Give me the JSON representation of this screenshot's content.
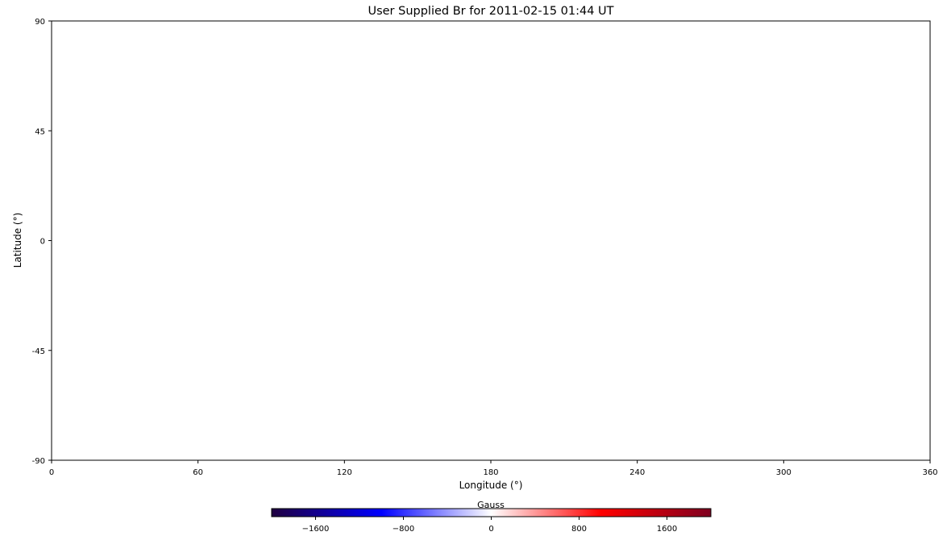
{
  "chart_data": {
    "type": "heatmap",
    "title": "User Supplied Br for 2011-02-15 01:44 UT",
    "xlabel": "Longitude (°)",
    "ylabel": "Latitude (°)",
    "xlim": [
      0,
      360
    ],
    "ylim": [
      -90,
      90
    ],
    "xticks": [
      0,
      60,
      120,
      180,
      240,
      300,
      360
    ],
    "yticks": [
      90,
      45,
      0,
      -45,
      -90
    ],
    "grid": false,
    "values": [],
    "colorbar": {
      "label": "Gauss",
      "orientation": "horizontal",
      "placement": "bottom",
      "colormap": "seismic",
      "range": [
        -2000,
        2000
      ],
      "ticks": [
        -1600,
        -800,
        0,
        800,
        1600
      ],
      "tick_labels": [
        "−1600",
        "−800",
        "0",
        "800",
        "1600"
      ],
      "colors": [
        "#200040",
        "#0000ff",
        "#ffffff",
        "#ff0000",
        "#7f0020"
      ]
    }
  }
}
